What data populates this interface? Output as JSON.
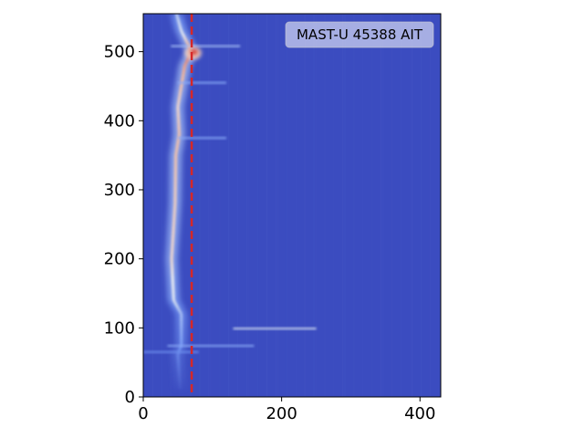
{
  "chart_data": {
    "type": "heatmap",
    "title": "",
    "xlabel": "",
    "ylabel": "",
    "xlim": [
      0,
      430
    ],
    "ylim": [
      0,
      555
    ],
    "x_ticks": [
      0,
      200,
      400
    ],
    "y_ticks": [
      0,
      100,
      200,
      300,
      400,
      500
    ],
    "annotation": "MAST-U 45388 AIT",
    "annotation_location": "top-right",
    "colormap": "coolwarm",
    "background_color": "#3b4cc0",
    "reference_line": {
      "axis": "x",
      "value": 70,
      "style": "dashed",
      "color": "#d62728"
    },
    "features": {
      "bright_band": [
        {
          "y": 0,
          "x_center": 54,
          "intensity": 0.0
        },
        {
          "y": 62,
          "x_center": 50,
          "intensity": 0.25
        },
        {
          "y": 75,
          "x_center": 55,
          "intensity": 0.35
        },
        {
          "y": 120,
          "x_center": 55,
          "intensity": 0.5
        },
        {
          "y": 140,
          "x_center": 44,
          "intensity": 0.7
        },
        {
          "y": 200,
          "x_center": 41,
          "intensity": 0.8
        },
        {
          "y": 280,
          "x_center": 46,
          "intensity": 0.82
        },
        {
          "y": 350,
          "x_center": 47,
          "intensity": 0.85
        },
        {
          "y": 380,
          "x_center": 52,
          "intensity": 0.85
        },
        {
          "y": 420,
          "x_center": 50,
          "intensity": 0.8
        },
        {
          "y": 450,
          "x_center": 55,
          "intensity": 0.85
        },
        {
          "y": 480,
          "x_center": 60,
          "intensity": 0.9
        },
        {
          "y": 500,
          "x_center": 70,
          "intensity": 0.95
        },
        {
          "y": 530,
          "x_center": 55,
          "intensity": 0.7
        },
        {
          "y": 555,
          "x_center": 48,
          "intensity": 0.55
        }
      ],
      "hot_spot": {
        "x": 72,
        "y": 498,
        "intensity": 1.0
      },
      "horizontal_streaks": [
        {
          "y": 99,
          "x_start": 130,
          "x_end": 250,
          "intensity": 0.8
        },
        {
          "y": 74,
          "x_start": 35,
          "x_end": 160,
          "intensity": 0.5
        },
        {
          "y": 65,
          "x_start": 0,
          "x_end": 80,
          "intensity": 0.35
        },
        {
          "y": 375,
          "x_start": 50,
          "x_end": 120,
          "intensity": 0.5
        },
        {
          "y": 455,
          "x_start": 50,
          "x_end": 120,
          "intensity": 0.5
        },
        {
          "y": 508,
          "x_start": 40,
          "x_end": 140,
          "intensity": 0.6
        }
      ]
    }
  }
}
